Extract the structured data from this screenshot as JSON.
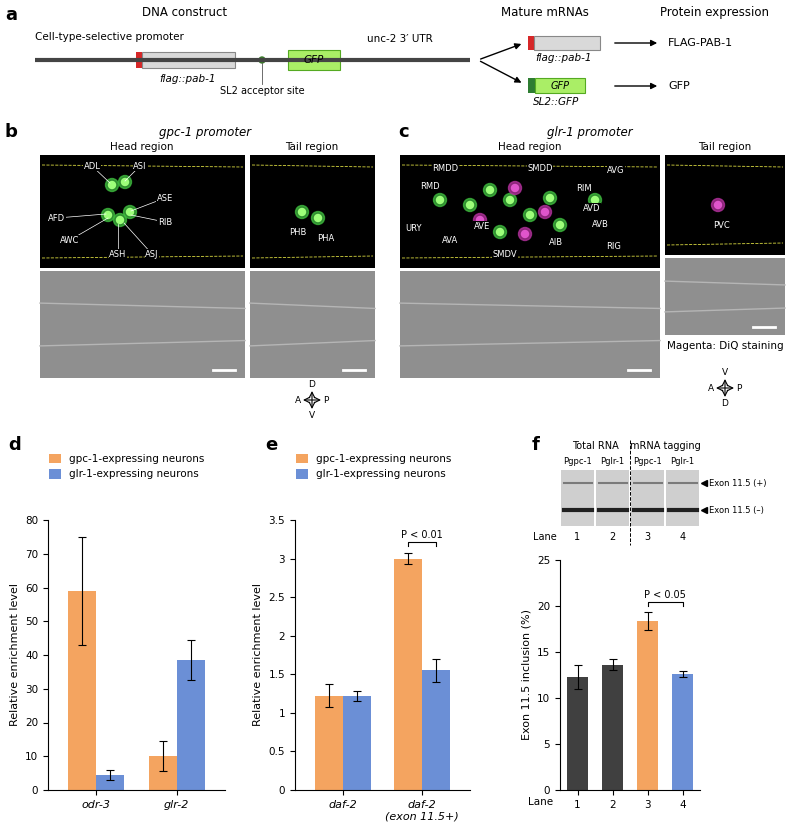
{
  "panel_a": {
    "letter": "a",
    "headers": [
      "DNA construct",
      "Mature mRNAs",
      "Protein expression"
    ],
    "promoter": "Cell-type-selective promoter",
    "construct_gene": "flag::pab-1",
    "sl2_site": "SL2 acceptor site",
    "reporter": "GFP",
    "utr": "unc-2 3′ UTR",
    "mrnas": [
      {
        "label": "flag::pab-1",
        "protein": "FLAG-PAB-1"
      },
      {
        "box": "GFP",
        "label": "SL2::GFP",
        "protein": "GFP"
      }
    ]
  },
  "image_panels": [
    {
      "letter": "b",
      "title": "gpc-1 promoter",
      "regions": [
        {
          "name": "Head region",
          "neurons": [
            "ADL",
            "ASI",
            "ASE",
            "RIB",
            "ASJ",
            "ASH",
            "AWC",
            "AFD"
          ]
        },
        {
          "name": "Tail region",
          "neurons": [
            "PHB",
            "PHA"
          ]
        }
      ],
      "compass": {
        "top": "D",
        "left": "A",
        "right": "P",
        "bottom": "V"
      }
    },
    {
      "letter": "c",
      "title": "glr-1 promoter",
      "regions": [
        {
          "name": "Head region",
          "neurons": [
            "RMDD",
            "SMDD",
            "AVG",
            "RMD",
            "RIM",
            "AVD",
            "AVB",
            "URY",
            "AVA",
            "AVE",
            "AIB",
            "SMDV",
            "RIG"
          ]
        },
        {
          "name": "Tail region",
          "neurons": [
            "PVC"
          ]
        }
      ],
      "stain_label": "Magenta: DiQ staining",
      "compass": {
        "top": "V",
        "left": "A",
        "right": "P",
        "bottom": "D"
      }
    }
  ],
  "gel_f": {
    "groups": [
      {
        "name": "Total RNA",
        "lanes": [
          "Pgpc-1",
          "Pglr-1"
        ]
      },
      {
        "name": "mRNA tagging",
        "lanes": [
          "Pgpc-1",
          "Pglr-1"
        ]
      }
    ],
    "lane_label": "Lane",
    "lane_numbers": [
      "1",
      "2",
      "3",
      "4"
    ],
    "bands": [
      "Exon 11.5 (+)",
      "Exon 11.5 (–)"
    ]
  },
  "chart_data": [
    {
      "letter": "d",
      "type": "bar",
      "categories": [
        "odr-3",
        "glr-2"
      ],
      "series": [
        {
          "name": "gpc-1-expressing neurons",
          "color": "#f4a460",
          "values": [
            59,
            10
          ],
          "errors": [
            16,
            4.5
          ]
        },
        {
          "name": "glr-1-expressing neurons",
          "color": "#6b8fd6",
          "values": [
            4.5,
            38.5
          ],
          "errors": [
            1.5,
            6
          ]
        }
      ],
      "y_label": "Relative enrichment level",
      "ylim": [
        0,
        80
      ],
      "yticks": [
        0,
        10,
        20,
        30,
        40,
        50,
        60,
        70,
        80
      ],
      "legend": "upper left"
    },
    {
      "letter": "e",
      "type": "bar",
      "categories": [
        "daf-2",
        "daf-2\n(exon 11.5+)"
      ],
      "series": [
        {
          "name": "gpc-1-expressing neurons",
          "color": "#f4a460",
          "values": [
            1.22,
            3.0
          ],
          "errors": [
            0.15,
            0.07
          ]
        },
        {
          "name": "glr-1-expressing neurons",
          "color": "#6b8fd6",
          "values": [
            1.22,
            1.55
          ],
          "errors": [
            0.06,
            0.15
          ]
        }
      ],
      "y_label": "Relative enrichment level",
      "ylim": [
        0,
        3.5
      ],
      "yticks": [
        0,
        0.5,
        1,
        1.5,
        2,
        2.5,
        3,
        3.5
      ],
      "legend": "upper left",
      "annotations": [
        {
          "text": "P < 0.01",
          "category": 1
        }
      ]
    },
    {
      "letter": "f",
      "type": "bar",
      "categories": [
        "1",
        "2",
        "3",
        "4"
      ],
      "x_label": "Lane",
      "values": [
        12.3,
        13.6,
        18.4,
        12.6
      ],
      "errors": [
        1.3,
        0.6,
        1.0,
        0.3
      ],
      "colors": [
        "#404040",
        "#404040",
        "#f4a460",
        "#6b8fd6"
      ],
      "y_label": "Exon 11.5 inclusion (%)",
      "ylim": [
        0,
        25
      ],
      "yticks": [
        0,
        5,
        10,
        15,
        20,
        25
      ],
      "annotations": [
        {
          "text": "P < 0.05",
          "bars": [
            2,
            3
          ]
        }
      ]
    }
  ]
}
